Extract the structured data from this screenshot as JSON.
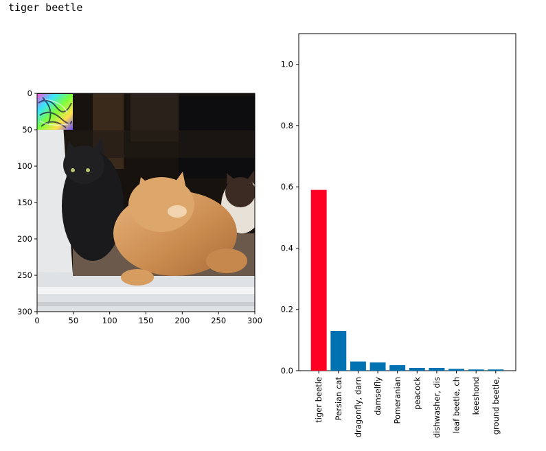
{
  "output": {
    "title": "tiger beetle"
  },
  "chart_data": [
    {
      "type": "image",
      "description": "photo of cats with an adversarial patch in the top-left corner",
      "xlim": [
        0,
        300
      ],
      "ylim": [
        300,
        0
      ],
      "xticks": [
        "0",
        "50",
        "100",
        "150",
        "200",
        "250",
        "300"
      ],
      "yticks": [
        "0",
        "50",
        "100",
        "150",
        "200",
        "250",
        "300"
      ]
    },
    {
      "type": "bar",
      "categories": [
        "tiger beetle",
        "Persian cat",
        "dragonfly, darn",
        "damselfly",
        "Pomeranian",
        "peacock",
        "dishwasher, dis",
        "leaf beetle, ch",
        "keeshond",
        "ground beetle,"
      ],
      "values": [
        0.59,
        0.13,
        0.03,
        0.027,
        0.018,
        0.009,
        0.009,
        0.006,
        0.004,
        0.004
      ],
      "colors": [
        "#ff0022",
        "#0072b2",
        "#0072b2",
        "#0072b2",
        "#0072b2",
        "#0072b2",
        "#0072b2",
        "#0072b2",
        "#0072b2",
        "#0072b2"
      ],
      "ylim": [
        0,
        1.1
      ],
      "yticks": [
        "0.0",
        "0.2",
        "0.4",
        "0.6",
        "0.8",
        "1.0"
      ],
      "ytick_values": [
        0,
        0.2,
        0.4,
        0.6,
        0.8,
        1.0
      ]
    }
  ]
}
